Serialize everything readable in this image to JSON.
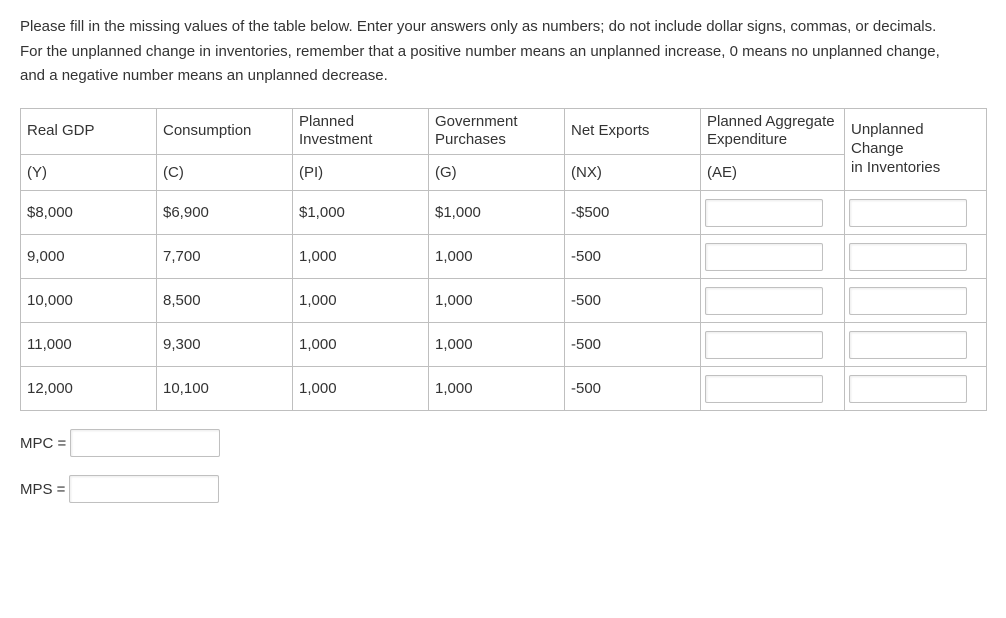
{
  "instructions": {
    "line1": "Please fill in the missing values of the table below. Enter your answers only as numbers; do not include dollar signs, commas, or decimals.",
    "line2": "For the unplanned change in inventories, remember that a positive number means an unplanned increase, 0 means no unplanned change,",
    "line3": "and a negative number means an unplanned decrease."
  },
  "headers": {
    "y_label": "Real GDP",
    "y_sym": "(Y)",
    "c_label": "Consumption",
    "c_sym": "(C)",
    "pi_label1": "Planned",
    "pi_label2": "Investment",
    "pi_sym": "(PI)",
    "g_label1": "Government",
    "g_label2": "Purchases",
    "g_sym": "(G)",
    "nx_label": "Net Exports",
    "nx_sym": "(NX)",
    "ae_label1": "Planned Aggregate",
    "ae_label2": "Expenditure",
    "ae_sym": "(AE)",
    "uc_label1": "Unplanned Change",
    "uc_label2": "in Inventories"
  },
  "rows": [
    {
      "y": "$8,000",
      "c": "$6,900",
      "pi": "$1,000",
      "g": "$1,000",
      "nx": "-$500"
    },
    {
      "y": "9,000",
      "c": "7,700",
      "pi": "1,000",
      "g": "1,000",
      "nx": "-500"
    },
    {
      "y": "10,000",
      "c": "8,500",
      "pi": "1,000",
      "g": "1,000",
      "nx": "-500"
    },
    {
      "y": "11,000",
      "c": "9,300",
      "pi": "1,000",
      "g": "1,000",
      "nx": "-500"
    },
    {
      "y": "12,000",
      "c": "10,100",
      "pi": "1,000",
      "g": "1,000",
      "nx": "-500"
    }
  ],
  "formulas": {
    "mpc_label": "MPC =",
    "mps_label": "MPS ="
  },
  "colors": {
    "text": "#333333",
    "border": "#bfbfbf",
    "input_border": "#c0c0c0",
    "background": "#ffffff"
  }
}
